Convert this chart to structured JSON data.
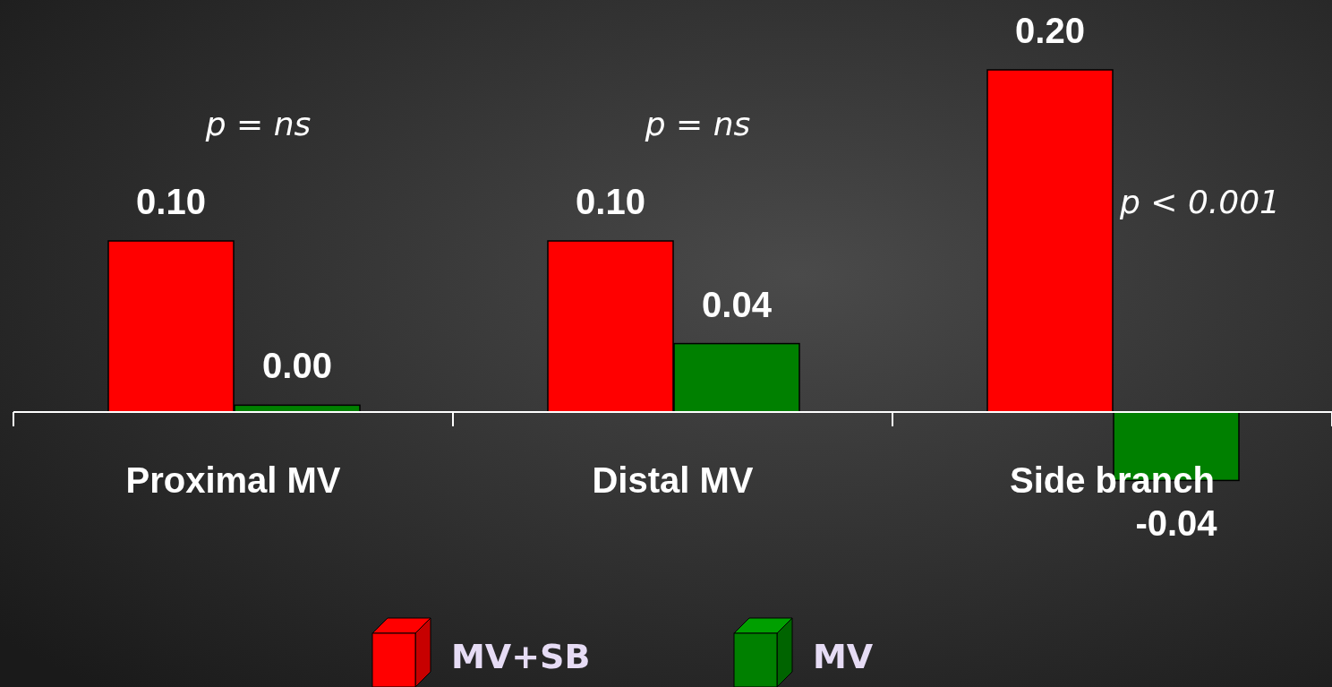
{
  "chart_data": {
    "type": "bar",
    "categories": [
      "Proximal MV",
      "Distal MV",
      "Side branch"
    ],
    "series": [
      {
        "name": "MV+SB",
        "color": "#ff0000",
        "values": [
          0.1,
          0.1,
          0.2
        ],
        "value_labels": [
          "0.10",
          "0.10",
          "0.20"
        ]
      },
      {
        "name": "MV",
        "color": "#008000",
        "values": [
          0.004,
          0.04,
          -0.04
        ],
        "value_labels": [
          "0.00",
          "0.04",
          "-0.04"
        ]
      }
    ],
    "annotations": [
      "p = ns",
      "p = ns",
      "p < 0.001"
    ],
    "legend": "bottom"
  }
}
